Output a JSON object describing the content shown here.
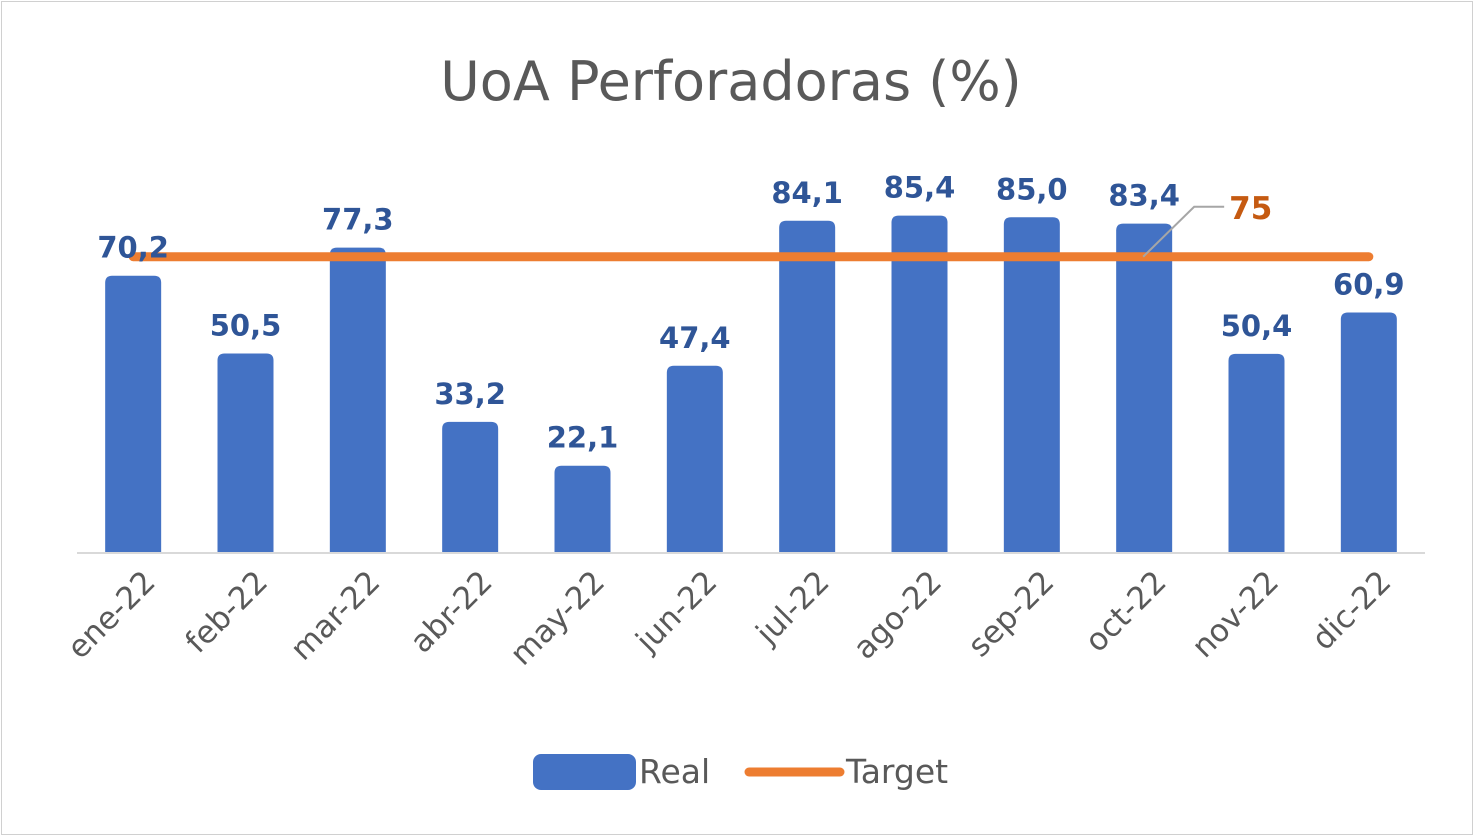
{
  "chart_data": {
    "type": "bar",
    "title": "UoA Perforadoras (%)",
    "xlabel": "",
    "ylabel": "",
    "ylim": [
      0,
      100
    ],
    "grid": false,
    "legend_position": "bottom",
    "categories": [
      "ene-22",
      "feb-22",
      "mar-22",
      "abr-22",
      "may-22",
      "jun-22",
      "jul-22",
      "ago-22",
      "sep-22",
      "oct-22",
      "nov-22",
      "dic-22"
    ],
    "series": [
      {
        "name": "Real",
        "type": "bar",
        "color": "#4472c4",
        "values": [
          70.2,
          50.5,
          77.3,
          33.2,
          22.1,
          47.4,
          84.1,
          85.4,
          85.0,
          83.4,
          50.4,
          60.9
        ],
        "labels": [
          "70,2",
          "50,5",
          "77,3",
          "33,2",
          "22,1",
          "47,4",
          "84,1",
          "85,4",
          "85,0",
          "83,4",
          "50,4",
          "60,9"
        ]
      },
      {
        "name": "Target",
        "type": "line",
        "color": "#ed7d31",
        "values": [
          75,
          75,
          75,
          75,
          75,
          75,
          75,
          75,
          75,
          75,
          75,
          75
        ]
      }
    ],
    "annotations": [
      {
        "text": "75",
        "series": "Target",
        "category": "oct-22",
        "color": "#c55a11"
      }
    ]
  }
}
